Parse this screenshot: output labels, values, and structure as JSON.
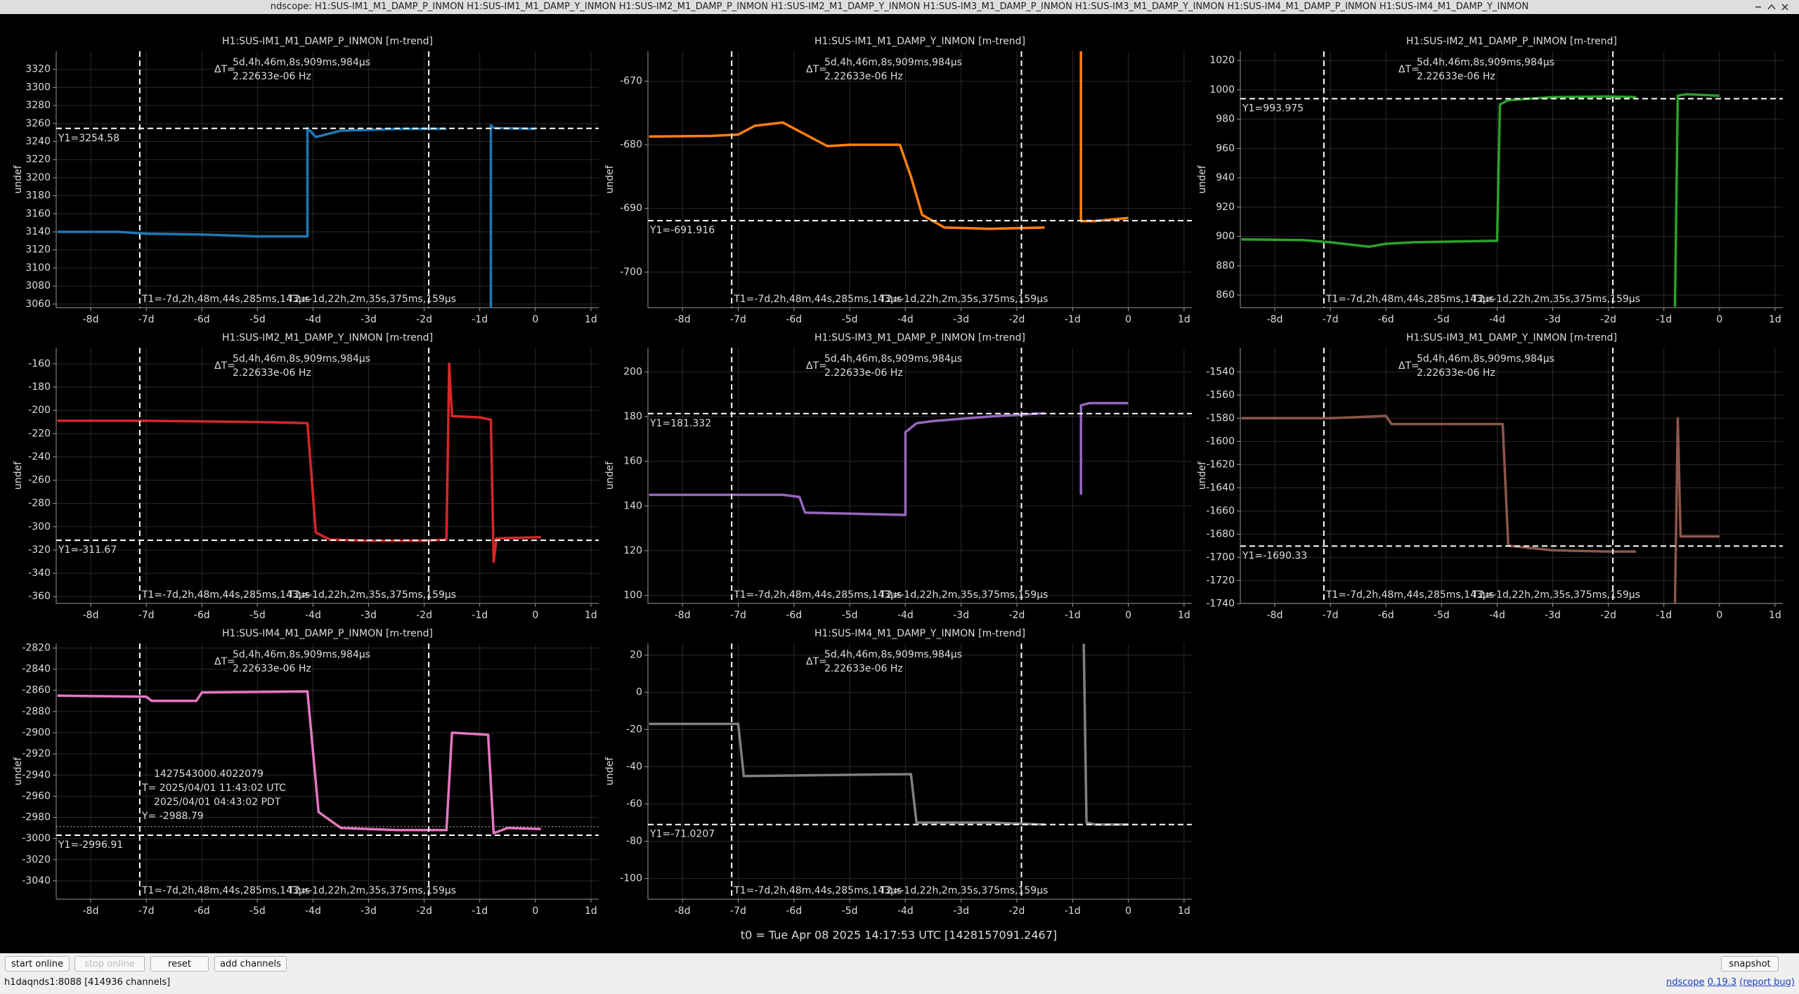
{
  "window": {
    "title": "ndscope: H1:SUS-IM1_M1_DAMP_P_INMON H1:SUS-IM1_M1_DAMP_Y_INMON H1:SUS-IM2_M1_DAMP_P_INMON H1:SUS-IM2_M1_DAMP_Y_INMON H1:SUS-IM3_M1_DAMP_P_INMON H1:SUS-IM3_M1_DAMP_Y_INMON H1:SUS-IM4_M1_DAMP_P_INMON H1:SUS-IM4_M1_DAMP_Y_INMON"
  },
  "chart_data": [
    {
      "type": "line",
      "title": "H1:SUS-IM1_M1_DAMP_P_INMON [m-trend]",
      "ylabel": "undef",
      "color": "#1f77b4",
      "x": [
        -8.6,
        -7.5,
        -7.0,
        -6.0,
        -5.0,
        -4.1,
        -4.1,
        -3.95,
        -3.5,
        -2.5,
        -1.6,
        -1.2,
        -0.8,
        -0.8,
        -0.75,
        0
      ],
      "values": [
        3140,
        3140,
        3138,
        3137,
        3135,
        3135,
        3255,
        3245,
        3252,
        3254,
        3254,
        null,
        3056,
        3258,
        3255,
        3254
      ],
      "xlim": [
        -8.62,
        1.14
      ],
      "xticks": [
        {
          "value": -8,
          "label": "-8d"
        },
        {
          "value": -7,
          "label": "-7d"
        },
        {
          "value": -6,
          "label": "-6d"
        },
        {
          "value": -5,
          "label": "-5d"
        },
        {
          "value": -4,
          "label": "-4d"
        },
        {
          "value": -3,
          "label": "-3d"
        },
        {
          "value": -2,
          "label": "-2d"
        },
        {
          "value": -1,
          "label": "-1d"
        },
        0,
        {
          "value": 1,
          "label": "1d"
        }
      ],
      "ylim": [
        3056,
        3340
      ],
      "yticks": [
        3060,
        3080,
        3100,
        3120,
        3140,
        3160,
        3180,
        3200,
        3220,
        3240,
        3260,
        3280,
        3300,
        3320
      ],
      "grid": true,
      "cursors": {
        "dt_label": "ΔT=",
        "dt_text": "5d,4h,46m,8s,909ms,984μs",
        "freq_text": "2.22633e-06 Hz",
        "t1": {
          "value": -7.117,
          "label": "T1=-7d,2h,48m,44s,285ms,143μs"
        },
        "t2": {
          "value": -1.918,
          "label": "T2=-1d,22h,2m,35s,375ms,159μs"
        },
        "y1": {
          "value": 3254.58,
          "label": "Y1=3254.58"
        }
      }
    },
    {
      "type": "line",
      "title": "H1:SUS-IM1_M1_DAMP_Y_INMON [m-trend]",
      "ylabel": "undef",
      "color": "#ff7f0e",
      "x": [
        -8.6,
        -7.5,
        -7.0,
        -6.7,
        -6.2,
        -5.4,
        -5.0,
        -4.1,
        -3.9,
        -3.7,
        -3.3,
        -2.5,
        -1.5,
        -1.2,
        -0.85,
        -0.85,
        -0.6,
        0
      ],
      "values": [
        -678.7,
        -678.6,
        -678.4,
        -677,
        -676.5,
        -680.2,
        -680,
        -680,
        -685,
        -691,
        -693,
        -693.2,
        -693,
        null,
        -665,
        -692,
        -692,
        -691.5
      ],
      "xlim": [
        -8.62,
        1.14
      ],
      "xticks": [
        {
          "value": -8,
          "label": "-8d"
        },
        {
          "value": -7,
          "label": "-7d"
        },
        {
          "value": -6,
          "label": "-6d"
        },
        {
          "value": -5,
          "label": "-5d"
        },
        {
          "value": -4,
          "label": "-4d"
        },
        {
          "value": -3,
          "label": "-3d"
        },
        {
          "value": -2,
          "label": "-2d"
        },
        {
          "value": -1,
          "label": "-1d"
        },
        0,
        {
          "value": 1,
          "label": "1d"
        }
      ],
      "ylim": [
        -705.6,
        -665.3
      ],
      "yticks": [
        -670,
        -680,
        -690,
        -700
      ],
      "grid": true,
      "cursors": {
        "dt_label": "ΔT=",
        "dt_text": "5d,4h,46m,8s,909ms,984μs",
        "freq_text": "2.22633e-06 Hz",
        "t1": {
          "value": -7.117,
          "label": "T1=-7d,2h,48m,44s,285ms,143μs"
        },
        "t2": {
          "value": -1.918,
          "label": "T2=-1d,22h,2m,35s,375ms,159μs"
        },
        "y1": {
          "value": -691.916,
          "label": "Y1=-691.916"
        }
      }
    },
    {
      "type": "line",
      "title": "H1:SUS-IM2_M1_DAMP_P_INMON [m-trend]",
      "ylabel": "undef",
      "color": "#2ca02c",
      "x": [
        -8.6,
        -7.5,
        -7.0,
        -6.3,
        -6.0,
        -5.5,
        -4.0,
        -3.95,
        -3.8,
        -3.0,
        -2.0,
        -1.5,
        -1.2,
        -0.8,
        -0.75,
        -0.6,
        0
      ],
      "values": [
        898,
        897.5,
        896,
        893,
        895,
        896,
        897,
        990,
        993,
        995,
        995.5,
        995,
        null,
        852,
        996,
        997,
        996
      ],
      "xlim": [
        -8.62,
        1.14
      ],
      "xticks": [
        {
          "value": -8,
          "label": "-8d"
        },
        {
          "value": -7,
          "label": "-7d"
        },
        {
          "value": -6,
          "label": "-6d"
        },
        {
          "value": -5,
          "label": "-5d"
        },
        {
          "value": -4,
          "label": "-4d"
        },
        {
          "value": -3,
          "label": "-3d"
        },
        {
          "value": -2,
          "label": "-2d"
        },
        {
          "value": -1,
          "label": "-1d"
        },
        0,
        {
          "value": 1,
          "label": "1d"
        }
      ],
      "ylim": [
        851.4,
        1026.3
      ],
      "yticks": [
        860,
        880,
        900,
        920,
        940,
        960,
        980,
        1000,
        1020
      ],
      "grid": true,
      "cursors": {
        "dt_label": "ΔT=",
        "dt_text": "5d,4h,46m,8s,909ms,984μs",
        "freq_text": "2.22633e-06 Hz",
        "t1": {
          "value": -7.117,
          "label": "T1=-7d,2h,48m,44s,285ms,143μs"
        },
        "t2": {
          "value": -1.918,
          "label": "T2=-1d,22h,2m,35s,375ms,159μs"
        },
        "y1": {
          "value": 993.975,
          "label": "Y1=993.975"
        }
      }
    },
    {
      "type": "line",
      "title": "H1:SUS-IM2_M1_DAMP_Y_INMON [m-trend]",
      "ylabel": "undef",
      "color": "#d62728",
      "x": [
        -8.6,
        -7.0,
        -5.0,
        -4.1,
        -3.95,
        -3.7,
        -3.0,
        -2.0,
        -1.6,
        -1.55,
        -1.5,
        -1.0,
        -0.8,
        -0.75,
        -0.7,
        0.1
      ],
      "values": [
        -209,
        -209,
        -210,
        -211,
        -305,
        -311,
        -312,
        -312,
        -311,
        -160,
        -205,
        -206,
        -208,
        -330,
        -310,
        -309
      ],
      "xlim": [
        -8.62,
        1.14
      ],
      "xticks": [
        {
          "value": -8,
          "label": "-8d"
        },
        {
          "value": -7,
          "label": "-7d"
        },
        {
          "value": -6,
          "label": "-6d"
        },
        {
          "value": -5,
          "label": "-5d"
        },
        {
          "value": -4,
          "label": "-4d"
        },
        {
          "value": -3,
          "label": "-3d"
        },
        {
          "value": -2,
          "label": "-2d"
        },
        {
          "value": -1,
          "label": "-1d"
        },
        0,
        {
          "value": 1,
          "label": "1d"
        }
      ],
      "ylim": [
        -365.9,
        -146.2
      ],
      "yticks": [
        -160,
        -180,
        -200,
        -220,
        -240,
        -260,
        -280,
        -300,
        -320,
        -340,
        -360
      ],
      "grid": true,
      "cursors": {
        "dt_label": "ΔT=",
        "dt_text": "5d,4h,46m,8s,909ms,984μs",
        "freq_text": "2.22633e-06 Hz",
        "t1": {
          "value": -7.117,
          "label": "T1=-7d,2h,48m,44s,285ms,143μs"
        },
        "t2": {
          "value": -1.918,
          "label": "T2=-1d,22h,2m,35s,375ms,159μs"
        },
        "y1": {
          "value": -311.67,
          "label": "Y1=-311.67"
        }
      }
    },
    {
      "type": "line",
      "title": "H1:SUS-IM3_M1_DAMP_P_INMON [m-trend]",
      "ylabel": "undef",
      "color": "#9467bd",
      "x": [
        -8.6,
        -7.0,
        -6.2,
        -5.9,
        -5.8,
        -4.0,
        -4.0,
        -3.8,
        -3.5,
        -2.5,
        -1.5,
        -1.2,
        -0.85,
        -0.85,
        -0.7,
        0
      ],
      "values": [
        145,
        145,
        145,
        144,
        137,
        136,
        173,
        177,
        178,
        180,
        181.5,
        null,
        145,
        185,
        186,
        186
      ],
      "xlim": [
        -8.62,
        1.14
      ],
      "xticks": [
        {
          "value": -8,
          "label": "-8d"
        },
        {
          "value": -7,
          "label": "-7d"
        },
        {
          "value": -6,
          "label": "-6d"
        },
        {
          "value": -5,
          "label": "-5d"
        },
        {
          "value": -4,
          "label": "-4d"
        },
        {
          "value": -3,
          "label": "-3d"
        },
        {
          "value": -2,
          "label": "-2d"
        },
        {
          "value": -1,
          "label": "-1d"
        },
        0,
        {
          "value": 1,
          "label": "1d"
        }
      ],
      "ylim": [
        96.4,
        210.8
      ],
      "yticks": [
        100,
        120,
        140,
        160,
        180,
        200
      ],
      "grid": true,
      "cursors": {
        "dt_label": "ΔT=",
        "dt_text": "5d,4h,46m,8s,909ms,984μs",
        "freq_text": "2.22633e-06 Hz",
        "t1": {
          "value": -7.117,
          "label": "T1=-7d,2h,48m,44s,285ms,143μs"
        },
        "t2": {
          "value": -1.918,
          "label": "T2=-1d,22h,2m,35s,375ms,159μs"
        },
        "y1": {
          "value": 181.332,
          "label": "Y1=181.332"
        }
      }
    },
    {
      "type": "line",
      "title": "H1:SUS-IM3_M1_DAMP_Y_INMON [m-trend]",
      "ylabel": "undef",
      "color": "#8c564b",
      "x": [
        -8.6,
        -7.0,
        -6.5,
        -6.0,
        -5.9,
        -4.0,
        -3.9,
        -3.8,
        -3.0,
        -2.0,
        -1.5,
        -1.2,
        -0.8,
        -0.75,
        -0.7,
        0
      ],
      "values": [
        -1580,
        -1580,
        -1579,
        -1578,
        -1585,
        -1585,
        -1585,
        -1690,
        -1694,
        -1695,
        -1695,
        null,
        -1740,
        -1580,
        -1682,
        -1682
      ],
      "xlim": [
        -8.62,
        1.14
      ],
      "xticks": [
        {
          "value": -8,
          "label": "-8d"
        },
        {
          "value": -7,
          "label": "-7d"
        },
        {
          "value": -6,
          "label": "-6d"
        },
        {
          "value": -5,
          "label": "-5d"
        },
        {
          "value": -4,
          "label": "-4d"
        },
        {
          "value": -3,
          "label": "-3d"
        },
        {
          "value": -2,
          "label": "-2d"
        },
        {
          "value": -1,
          "label": "-1d"
        },
        0,
        {
          "value": 1,
          "label": "1d"
        }
      ],
      "ylim": [
        -1739.8,
        -1519.2
      ],
      "yticks": [
        -1540,
        -1560,
        -1580,
        -1600,
        -1620,
        -1640,
        -1660,
        -1680,
        -1700,
        -1720,
        -1740
      ],
      "grid": true,
      "cursors": {
        "dt_label": "ΔT=",
        "dt_text": "5d,4h,46m,8s,909ms,984μs",
        "freq_text": "2.22633e-06 Hz",
        "t1": {
          "value": -7.117,
          "label": "T1=-7d,2h,48m,44s,285ms,143μs"
        },
        "t2": {
          "value": -1.918,
          "label": "T2=-1d,22h,2m,35s,375ms,159μs"
        },
        "y1": {
          "value": -1690.33,
          "label": "Y1=-1690.33"
        }
      }
    },
    {
      "type": "line",
      "title": "H1:SUS-IM4_M1_DAMP_P_INMON [m-trend]",
      "ylabel": "undef",
      "color": "#e377c2",
      "x": [
        -8.6,
        -7.0,
        -6.9,
        -6.1,
        -6.0,
        -4.1,
        -3.9,
        -3.5,
        -2.5,
        -1.6,
        -1.5,
        -0.85,
        -0.75,
        -0.5,
        0.1
      ],
      "values": [
        -2865,
        -2866,
        -2870,
        -2870,
        -2862,
        -2861,
        -2975,
        -2990,
        -2992,
        -2992,
        -2900,
        -2902,
        -2995,
        -2990,
        -2991
      ],
      "xlim": [
        -8.62,
        1.14
      ],
      "xticks": [
        {
          "value": -8,
          "label": "-8d"
        },
        {
          "value": -7,
          "label": "-7d"
        },
        {
          "value": -6,
          "label": "-6d"
        },
        {
          "value": -5,
          "label": "-5d"
        },
        {
          "value": -4,
          "label": "-4d"
        },
        {
          "value": -3,
          "label": "-3d"
        },
        {
          "value": -2,
          "label": "-2d"
        },
        {
          "value": -1,
          "label": "-1d"
        },
        0,
        {
          "value": 1,
          "label": "1d"
        }
      ],
      "ylim": [
        -3057.3,
        -2815.7
      ],
      "yticks": [
        -2820,
        -2840,
        -2860,
        -2880,
        -2900,
        -2920,
        -2940,
        -2960,
        -2980,
        -3000,
        -3020,
        -3040
      ],
      "grid": true,
      "cursors": {
        "dt_label": "ΔT=",
        "dt_text": "5d,4h,46m,8s,909ms,984μs",
        "freq_text": "2.22633e-06 Hz",
        "t1": {
          "value": -7.117,
          "label": "T1=-7d,2h,48m,44s,285ms,143μs"
        },
        "t2": {
          "value": -1.918,
          "label": "T2=-1d,22h,2m,35s,375ms,159μs"
        },
        "y1": {
          "value": -2996.91,
          "label": "Y1=-2996.91"
        }
      },
      "readout": [
        "1427543000.4022079",
        "T= 2025/04/01 11:43:02 UTC",
        "2025/04/01 04:43:02 PDT",
        "Y= -2988.79"
      ],
      "readout_y": -2988.79
    },
    {
      "type": "line",
      "title": "H1:SUS-IM4_M1_DAMP_Y_INMON [m-trend]",
      "ylabel": "undef",
      "color": "#7f7f7f",
      "x": [
        -8.6,
        -7.0,
        -6.9,
        -4.0,
        -3.9,
        -3.8,
        -2.5,
        -1.5,
        -1.2,
        -0.8,
        -0.75,
        -0.6,
        0
      ],
      "values": [
        -17,
        -17,
        -45,
        -44,
        -44,
        -70,
        -70,
        -71,
        null,
        26,
        -70,
        -71,
        -71
      ],
      "xlim": [
        -8.62,
        1.14
      ],
      "xticks": [
        {
          "value": -8,
          "label": "-8d"
        },
        {
          "value": -7,
          "label": "-7d"
        },
        {
          "value": -6,
          "label": "-6d"
        },
        {
          "value": -5,
          "label": "-5d"
        },
        {
          "value": -4,
          "label": "-4d"
        },
        {
          "value": -3,
          "label": "-3d"
        },
        {
          "value": -2,
          "label": "-2d"
        },
        {
          "value": -1,
          "label": "-1d"
        },
        0,
        {
          "value": 1,
          "label": "1d"
        }
      ],
      "ylim": [
        -111.1,
        26.2
      ],
      "yticks": [
        20,
        0,
        -20,
        -40,
        -60,
        -80,
        -100
      ],
      "grid": true,
      "cursors": {
        "dt_label": "ΔT=",
        "dt_text": "5d,4h,46m,8s,909ms,984μs",
        "freq_text": "2.22633e-06 Hz",
        "t1": {
          "value": -7.117,
          "label": "T1=-7d,2h,48m,44s,285ms,143μs"
        },
        "t2": {
          "value": -1.918,
          "label": "T2=-1d,22h,2m,35s,375ms,159μs"
        },
        "y1": {
          "value": -71.0207,
          "label": "Y1=-71.0207"
        }
      }
    }
  ],
  "t0_label": "t0 = Tue Apr 08 2025 14:17:53 UTC [1428157091.2467]",
  "toolbar": {
    "start": "start online",
    "stop": "stop online",
    "reset": "reset",
    "add": "add channels",
    "snapshot": "snapshot"
  },
  "status": {
    "server": "h1daqnds1:8088  [414936 channels]",
    "app": "ndscope",
    "version": "0.19.3",
    "report": "(report bug)"
  }
}
